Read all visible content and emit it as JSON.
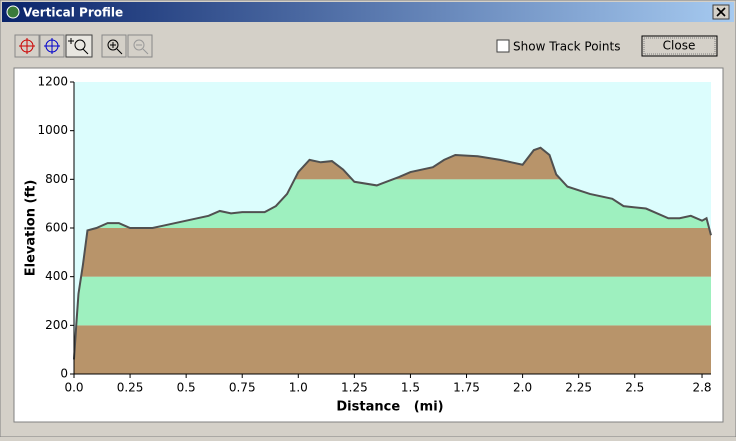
{
  "window": {
    "title": "Vertical Profile",
    "checkbox_label": "Show Track Points",
    "close_button": "Close"
  },
  "chart_data": {
    "type": "area",
    "x_label": "Distance   (mi)",
    "y_label": "Elevation (ft)",
    "xlim": [
      0,
      2.84
    ],
    "ylim": [
      0,
      1200
    ],
    "xticks": [
      {
        "value": 0,
        "label": "0.0"
      },
      0.25,
      0.5,
      0.75,
      {
        "value": 1,
        "label": "1.0"
      },
      1.25,
      1.5,
      1.75,
      {
        "value": 2,
        "label": "2.0"
      },
      2.25,
      2.5,
      2.8
    ],
    "yticks": [
      0,
      200,
      400,
      600,
      800,
      1000,
      1200
    ],
    "background": "#dcfdfd",
    "band_colors": [
      "#b8946a",
      "#9ef0bf"
    ],
    "color": "#505050",
    "x": [
      0,
      0.01,
      0.02,
      0.04,
      0.06,
      0.1,
      0.15,
      0.2,
      0.25,
      0.35,
      0.4,
      0.5,
      0.6,
      0.65,
      0.7,
      0.75,
      0.85,
      0.9,
      0.95,
      1.0,
      1.05,
      1.1,
      1.15,
      1.2,
      1.25,
      1.35,
      1.45,
      1.5,
      1.6,
      1.65,
      1.7,
      1.8,
      1.9,
      1.95,
      2.0,
      2.05,
      2.08,
      2.12,
      2.15,
      2.2,
      2.3,
      2.4,
      2.45,
      2.55,
      2.65,
      2.7,
      2.75,
      2.8,
      2.82,
      2.84
    ],
    "values": [
      60,
      200,
      330,
      450,
      590,
      600,
      620,
      620,
      600,
      600,
      610,
      630,
      650,
      670,
      660,
      665,
      665,
      690,
      740,
      830,
      880,
      870,
      875,
      840,
      790,
      775,
      810,
      830,
      850,
      880,
      900,
      895,
      880,
      870,
      860,
      920,
      930,
      900,
      820,
      770,
      740,
      720,
      690,
      680,
      640,
      640,
      650,
      630,
      640,
      570
    ]
  }
}
